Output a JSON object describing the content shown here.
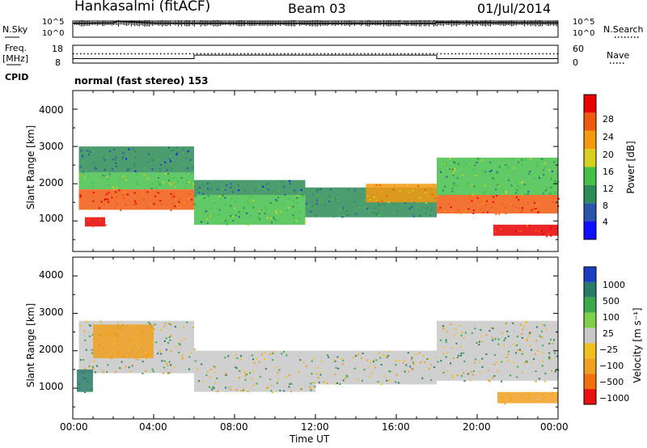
{
  "header": {
    "site": "Hankasalmi (fitACF)",
    "beam": "Beam 03",
    "date": "01/Jul/2014"
  },
  "left_labels": {
    "nsky": "N.Sky",
    "freq_line1": "Freq.",
    "freq_line2": "[MHz]",
    "cpid": "CPID",
    "nsky_top_tick": "10^5",
    "nsky_bottom_tick": "10^0",
    "freq_top_tick": "18",
    "freq_bottom_tick": "8"
  },
  "right_labels": {
    "nsearch": "N.Search",
    "nave": "Nave",
    "nsearch_top_tick": "10^5",
    "nsearch_bottom_tick": "10^0",
    "nave_top_tick": "60",
    "nave_bottom_tick": "0"
  },
  "cpid_text": "normal (fast stereo) 153",
  "x_axis": {
    "label": "Time UT",
    "ticks": [
      "00:00",
      "04:00",
      "08:00",
      "12:00",
      "16:00",
      "20:00",
      "00:00"
    ]
  },
  "panels": {
    "power": {
      "ylabel": "Slant Range [km]",
      "yticks": [
        "1000",
        "2000",
        "3000",
        "4000"
      ],
      "colorbar_label": "Power [dB]",
      "colorbar_ticks": [
        "4",
        "8",
        "12",
        "16",
        "20",
        "24",
        "28"
      ],
      "colorbar_colors": [
        "#1010ff",
        "#2a55a8",
        "#2e8b57",
        "#45c04a",
        "#d8d020",
        "#f39a10",
        "#f05a10",
        "#e80000"
      ]
    },
    "velocity": {
      "ylabel": "Slant Range [km]",
      "yticks": [
        "1000",
        "2000",
        "3000",
        "4000"
      ],
      "colorbar_label": "Velocity [m s⁻¹]",
      "colorbar_ticks": [
        "1000",
        "500",
        "100",
        "25",
        "−25",
        "−100",
        "−500",
        "−1000"
      ],
      "colorbar_colors": [
        "#1a3fc0",
        "#2a7a6a",
        "#3ba84a",
        "#7ed04a",
        "#c8c8c8",
        "#f0c020",
        "#f0a020",
        "#f07010",
        "#e81010"
      ]
    }
  },
  "chart_data": [
    {
      "type": "line",
      "name": "N.Sky / N.Search",
      "x_range_hours": [
        0,
        24
      ],
      "ylim": [
        1,
        100000
      ],
      "yscale": "log",
      "series": [
        {
          "x": [
            0.0,
            0.5,
            2.0,
            2.2,
            4.0,
            6.0,
            8.0,
            12.0,
            16.0,
            17.9,
            18.0,
            20.0,
            24.0
          ],
          "y": [
            20000,
            20000,
            25000,
            90000,
            22000,
            20000,
            20000,
            18000,
            18000,
            18000,
            40000,
            30000,
            25000
          ]
        }
      ]
    },
    {
      "type": "line",
      "name": "Freq / Nave",
      "x_range_hours": [
        0,
        24
      ],
      "ylim": [
        8,
        18
      ],
      "series": [
        {
          "x": [
            0,
            6,
            6,
            18,
            18,
            24
          ],
          "y": [
            10.5,
            10.5,
            12.5,
            12.5,
            10.5,
            10.5
          ]
        },
        {
          "x": [
            0,
            24
          ],
          "y": [
            13.2,
            13.2
          ]
        }
      ]
    },
    {
      "type": "heatmap",
      "name": "Power",
      "x_range_hours": [
        0,
        24
      ],
      "ylim_km": [
        180,
        4500
      ],
      "value_units": "dB",
      "color_range": [
        0,
        30
      ],
      "regions": [
        {
          "t": [
            0.3,
            6.0
          ],
          "r": [
            1300,
            1850
          ],
          "value": 26
        },
        {
          "t": [
            0.3,
            6.0
          ],
          "r": [
            1850,
            2300
          ],
          "value": 14
        },
        {
          "t": [
            0.3,
            6.0
          ],
          "r": [
            2300,
            3000
          ],
          "value": 8
        },
        {
          "t": [
            0.6,
            1.6
          ],
          "r": [
            850,
            1100
          ],
          "value": 27
        },
        {
          "t": [
            6.0,
            11.5
          ],
          "r": [
            900,
            1700
          ],
          "value": 12
        },
        {
          "t": [
            6.0,
            11.5
          ],
          "r": [
            1700,
            2100
          ],
          "value": 8
        },
        {
          "t": [
            11.5,
            18.0
          ],
          "r": [
            1100,
            1900
          ],
          "value": 10
        },
        {
          "t": [
            14.5,
            18.0
          ],
          "r": [
            1500,
            2000
          ],
          "value": 20
        },
        {
          "t": [
            18.0,
            24.0
          ],
          "r": [
            1200,
            1700
          ],
          "value": 25
        },
        {
          "t": [
            18.0,
            24.0
          ],
          "r": [
            1700,
            2700
          ],
          "value": 12
        },
        {
          "t": [
            20.8,
            24.0
          ],
          "r": [
            600,
            900
          ],
          "value": 27
        }
      ]
    },
    {
      "type": "heatmap",
      "name": "Velocity",
      "x_range_hours": [
        0,
        24
      ],
      "ylim_km": [
        180,
        4500
      ],
      "value_units": "m s-1",
      "color_range": [
        -1000,
        1000
      ],
      "regions": [
        {
          "t": [
            0.3,
            6.0
          ],
          "r": [
            1400,
            2800
          ],
          "value": 0
        },
        {
          "t": [
            1.0,
            4.0
          ],
          "r": [
            1800,
            2700
          ],
          "value": -200
        },
        {
          "t": [
            0.2,
            1.0
          ],
          "r": [
            900,
            1500
          ],
          "value": 200
        },
        {
          "t": [
            6.0,
            12.0
          ],
          "r": [
            900,
            2000
          ],
          "value": 0
        },
        {
          "t": [
            12.0,
            18.0
          ],
          "r": [
            1100,
            2000
          ],
          "value": 0
        },
        {
          "t": [
            18.0,
            24.0
          ],
          "r": [
            1200,
            2800
          ],
          "value": 0
        },
        {
          "t": [
            21.0,
            24.0
          ],
          "r": [
            600,
            900
          ],
          "value": -120
        }
      ]
    }
  ]
}
